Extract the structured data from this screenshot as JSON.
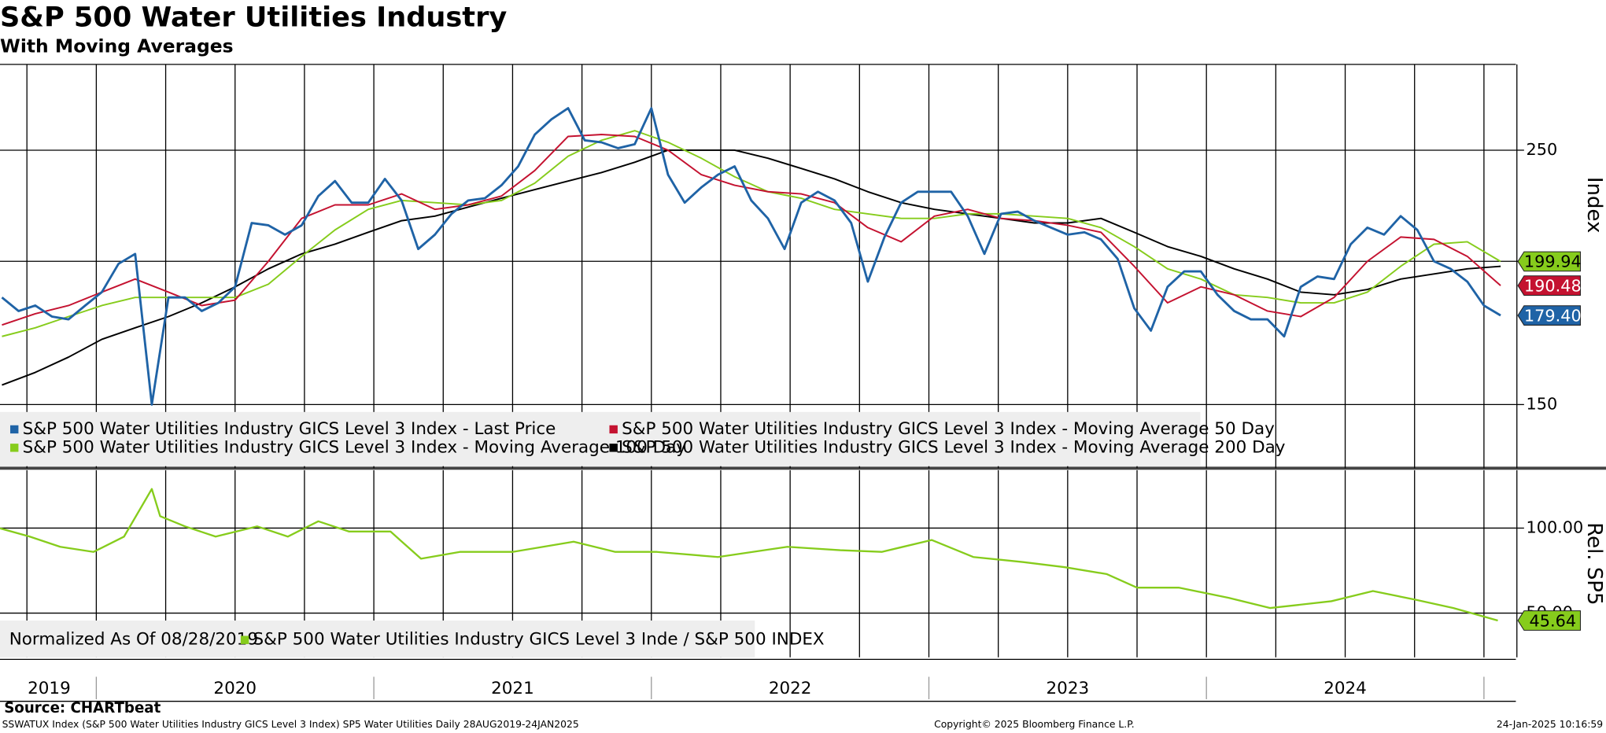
{
  "header": {
    "title": "S&P 500 Water Utilities Industry",
    "subtitle": "With Moving Averages"
  },
  "chart_data": [
    {
      "type": "line",
      "log_y": true,
      "grid": true,
      "y_axis_label": "Index",
      "xlim": [
        2019.653,
        2025.115
      ],
      "xgrid": [
        2019.75,
        2020,
        2020.25,
        2020.5,
        2020.75,
        2021,
        2021.25,
        2021.5,
        2021.75,
        2022,
        2022.25,
        2022.5,
        2022.75,
        2023,
        2023.25,
        2023.5,
        2023.75,
        2024,
        2024.25,
        2024.5,
        2024.75,
        2025
      ],
      "ylim": [
        132,
        297
      ],
      "yticks": [
        150,
        200,
        250
      ],
      "x": [
        2019.66,
        2019.72,
        2019.78,
        2019.84,
        2019.9,
        2019.96,
        2020.02,
        2020.08,
        2020.14,
        2020.2,
        2020.26,
        2020.32,
        2020.38,
        2020.44,
        2020.5,
        2020.56,
        2020.62,
        2020.68,
        2020.74,
        2020.8,
        2020.86,
        2020.92,
        2020.98,
        2021.04,
        2021.1,
        2021.16,
        2021.22,
        2021.28,
        2021.34,
        2021.4,
        2021.46,
        2021.52,
        2021.58,
        2021.64,
        2021.7,
        2021.76,
        2021.82,
        2021.88,
        2021.94,
        2022,
        2022.06,
        2022.12,
        2022.18,
        2022.24,
        2022.3,
        2022.36,
        2022.42,
        2022.48,
        2022.54,
        2022.6,
        2022.66,
        2022.72,
        2022.78,
        2022.84,
        2022.9,
        2022.96,
        2023.02,
        2023.08,
        2023.14,
        2023.2,
        2023.26,
        2023.32,
        2023.38,
        2023.44,
        2023.5,
        2023.56,
        2023.62,
        2023.68,
        2023.74,
        2023.8,
        2023.86,
        2023.92,
        2023.98,
        2024.04,
        2024.1,
        2024.16,
        2024.22,
        2024.28,
        2024.34,
        2024.4,
        2024.46,
        2024.52,
        2024.58,
        2024.64,
        2024.7,
        2024.76,
        2024.82,
        2024.88,
        2024.94,
        2025,
        2025.06
      ],
      "series": [
        {
          "name": "S&P 500 Water Utilities Industry GICS Level 3 Index - Last Price",
          "color": "#1f63a6",
          "width": 2.2,
          "values": [
            186,
            181,
            183,
            179,
            178,
            183,
            188,
            199,
            203,
            150,
            186,
            186,
            181,
            184,
            190,
            216,
            215,
            211,
            215,
            228,
            235,
            225,
            225,
            236,
            226,
            205,
            211,
            220,
            226,
            227,
            233,
            242,
            258,
            266,
            272,
            255,
            254,
            251,
            253,
            272,
            238,
            225,
            232,
            238,
            242,
            226,
            218,
            205,
            225,
            230,
            226,
            216,
            192,
            210,
            225,
            230,
            230,
            230,
            219,
            203,
            220,
            221,
            217,
            214,
            211,
            212,
            209,
            201,
            182,
            174,
            190,
            196,
            196,
            187,
            181,
            178,
            178,
            172,
            190,
            194,
            193,
            207,
            214,
            211,
            219,
            213,
            200,
            197,
            192,
            183,
            179.4
          ],
          "tag": {
            "value": 179.4,
            "label": "179.40"
          }
        },
        {
          "name": "S&P 500 Water Utilities Industry GICS Level 3 Index - Moving Average 50 Day",
          "color": "#c41230",
          "width": 1.5,
          "x": [
            2019.66,
            2019.78,
            2019.9,
            2020.02,
            2020.14,
            2020.26,
            2020.38,
            2020.5,
            2020.62,
            2020.74,
            2020.86,
            2020.98,
            2021.1,
            2021.22,
            2021.34,
            2021.46,
            2021.58,
            2021.7,
            2021.82,
            2021.94,
            2022.06,
            2022.18,
            2022.3,
            2022.42,
            2022.54,
            2022.66,
            2022.78,
            2022.9,
            2023.02,
            2023.14,
            2023.26,
            2023.38,
            2023.5,
            2023.62,
            2023.74,
            2023.86,
            2023.98,
            2024.1,
            2024.22,
            2024.34,
            2024.46,
            2024.58,
            2024.7,
            2024.82,
            2024.94,
            2025.06
          ],
          "values": [
            176,
            180,
            183,
            188,
            193,
            188,
            183,
            185,
            200,
            218,
            224,
            224,
            229,
            222,
            224,
            228,
            240,
            257,
            258,
            257,
            250,
            238,
            233,
            230,
            229,
            225,
            214,
            208,
            219,
            222,
            218,
            217,
            215,
            212,
            198,
            184,
            190,
            187,
            181,
            179,
            186,
            200,
            210,
            209,
            202,
            190.48
          ],
          "tag": {
            "value": 190.48,
            "label": "190.48"
          }
        },
        {
          "name": "S&P 500 Water Utilities Industry GICS Level 3 Index - Moving Average 100 Day",
          "color": "#86cc1c",
          "width": 1.5,
          "x": [
            2019.66,
            2019.78,
            2019.9,
            2020.02,
            2020.14,
            2020.26,
            2020.38,
            2020.5,
            2020.62,
            2020.74,
            2020.86,
            2020.98,
            2021.1,
            2021.22,
            2021.34,
            2021.46,
            2021.58,
            2021.7,
            2021.82,
            2021.94,
            2022.06,
            2022.18,
            2022.3,
            2022.42,
            2022.54,
            2022.66,
            2022.78,
            2022.9,
            2023.02,
            2023.14,
            2023.26,
            2023.38,
            2023.5,
            2023.62,
            2023.74,
            2023.86,
            2023.98,
            2024.1,
            2024.22,
            2024.34,
            2024.46,
            2024.58,
            2024.7,
            2024.82,
            2024.94,
            2025.06
          ],
          "values": [
            172,
            175,
            179,
            183,
            186,
            186,
            186,
            186,
            191,
            202,
            213,
            222,
            226,
            225,
            224,
            226,
            234,
            247,
            255,
            260,
            254,
            246,
            237,
            230,
            227,
            222,
            220,
            218,
            218,
            220,
            220,
            219,
            218,
            214,
            206,
            197,
            193,
            187,
            186,
            184,
            184,
            188,
            198,
            207,
            208,
            199.94
          ],
          "tag": {
            "value": 199.94,
            "label": "199.94"
          }
        },
        {
          "name": "S&P 500 Water Utilities Industry GICS Level 3 Index - Moving Average 200 Day",
          "color": "#000000",
          "width": 1.5,
          "x": [
            2019.66,
            2019.78,
            2019.9,
            2020.02,
            2020.14,
            2020.26,
            2020.38,
            2020.5,
            2020.62,
            2020.74,
            2020.86,
            2020.98,
            2021.1,
            2021.22,
            2021.34,
            2021.46,
            2021.58,
            2021.7,
            2021.82,
            2021.94,
            2022.06,
            2022.18,
            2022.3,
            2022.42,
            2022.54,
            2022.66,
            2022.78,
            2022.9,
            2023.02,
            2023.14,
            2023.26,
            2023.38,
            2023.5,
            2023.62,
            2023.74,
            2023.86,
            2023.98,
            2024.1,
            2024.22,
            2024.34,
            2024.46,
            2024.58,
            2024.7,
            2024.82,
            2024.94,
            2025.06
          ],
          "values": [
            156,
            160,
            165,
            171,
            175,
            179,
            184,
            190,
            197,
            203,
            207,
            212,
            217,
            219,
            223,
            227,
            231,
            235,
            239,
            244,
            250,
            250,
            250,
            246,
            241,
            236,
            230,
            225,
            222,
            220,
            218,
            216,
            216,
            218,
            212,
            206,
            202,
            197,
            193,
            188,
            187,
            189,
            193,
            195,
            197,
            198
          ]
        }
      ]
    },
    {
      "type": "line",
      "log_y": false,
      "grid": true,
      "y_axis_label": "Rel. SP5",
      "legend_note": "Normalized As Of 08/28/2019",
      "xlim": [
        2019.653,
        2025.115
      ],
      "xgrid": [
        2019.75,
        2020,
        2020.25,
        2020.5,
        2020.75,
        2021,
        2021.25,
        2021.5,
        2021.75,
        2022,
        2022.25,
        2022.5,
        2022.75,
        2023,
        2023.25,
        2023.5,
        2023.75,
        2024,
        2024.25,
        2024.5,
        2024.75,
        2025
      ],
      "xticks": [
        {
          "value": 2019.83,
          "label": "2019"
        },
        {
          "value": 2020.5,
          "label": "2020"
        },
        {
          "value": 2021.5,
          "label": "2021"
        },
        {
          "value": 2022.5,
          "label": "2022"
        },
        {
          "value": 2023.5,
          "label": "2023"
        },
        {
          "value": 2024.5,
          "label": "2024"
        }
      ],
      "ylim": [
        24,
        134
      ],
      "yticks": [
        {
          "value": 100,
          "label": "100.00"
        },
        {
          "value": 50,
          "label": "50.00"
        }
      ],
      "series": [
        {
          "name": "S&P 500 Water Utilities Industry GICS Level 3 Inde / S&P 500 INDEX",
          "color": "#86cc1c",
          "width": 1.8,
          "x": [
            2019.65,
            2019.76,
            2019.87,
            2019.99,
            2020.1,
            2020.2,
            2020.23,
            2020.32,
            2020.43,
            2020.58,
            2020.69,
            2020.8,
            2020.91,
            2021.06,
            2021.17,
            2021.31,
            2021.5,
            2021.72,
            2021.87,
            2022.02,
            2022.24,
            2022.49,
            2022.68,
            2022.83,
            2023.01,
            2023.16,
            2023.34,
            2023.49,
            2023.64,
            2023.75,
            2023.9,
            2024.08,
            2024.23,
            2024.45,
            2024.6,
            2024.75,
            2024.89,
            2025.05
          ],
          "values": [
            100,
            95,
            89,
            86,
            95,
            123,
            107,
            101,
            95,
            101,
            95,
            104,
            98,
            98,
            82,
            86,
            86,
            92,
            86,
            86,
            83,
            89,
            87,
            86,
            93,
            83,
            80,
            77,
            73,
            65,
            65,
            59,
            53,
            57,
            63,
            58,
            53,
            45.64
          ],
          "tag": {
            "value": 45.64,
            "label": "45.64"
          }
        }
      ]
    }
  ],
  "footer": {
    "source": "Source: CHARTbeat",
    "description": "SSWATUX Index (S&P 500 Water Utilities Industry GICS Level 3 Index) SP5 Water Utilities  Daily 28AUG2019-24JAN2025",
    "copyright": "Copyright© 2025 Bloomberg Finance L.P.",
    "timestamp": "24-Jan-2025 10:16:59"
  }
}
